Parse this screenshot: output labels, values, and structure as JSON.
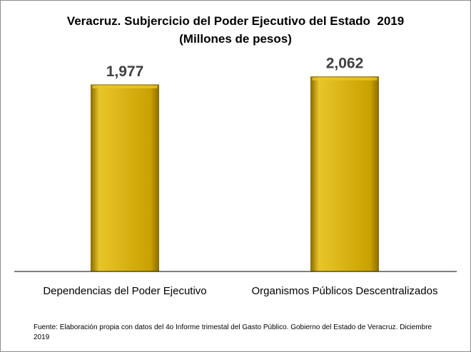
{
  "chart_data": {
    "type": "bar",
    "title": "Veracruz. Subjercicio del Poder Ejecutivo del Estado  2019",
    "subtitle": "(Millones de pesos)",
    "categories": [
      "Dependencias del Poder Ejecutivo",
      "Organismos Públicos Descentralizados"
    ],
    "values": [
      1977,
      2062
    ],
    "value_labels": [
      "1,977",
      "2,062"
    ],
    "ylim": [
      0,
      2500
    ],
    "grid": false,
    "bar_color": "#C9A100",
    "bar_color_light": "#E8C52A",
    "bar_color_dark": "#8C6E00"
  },
  "source_text": "Fuente: Elaboración propia con datos del 4o Informe trimestal del Gasto Público. Gobierno del Estado de Veracruz. Diciembre 2019"
}
